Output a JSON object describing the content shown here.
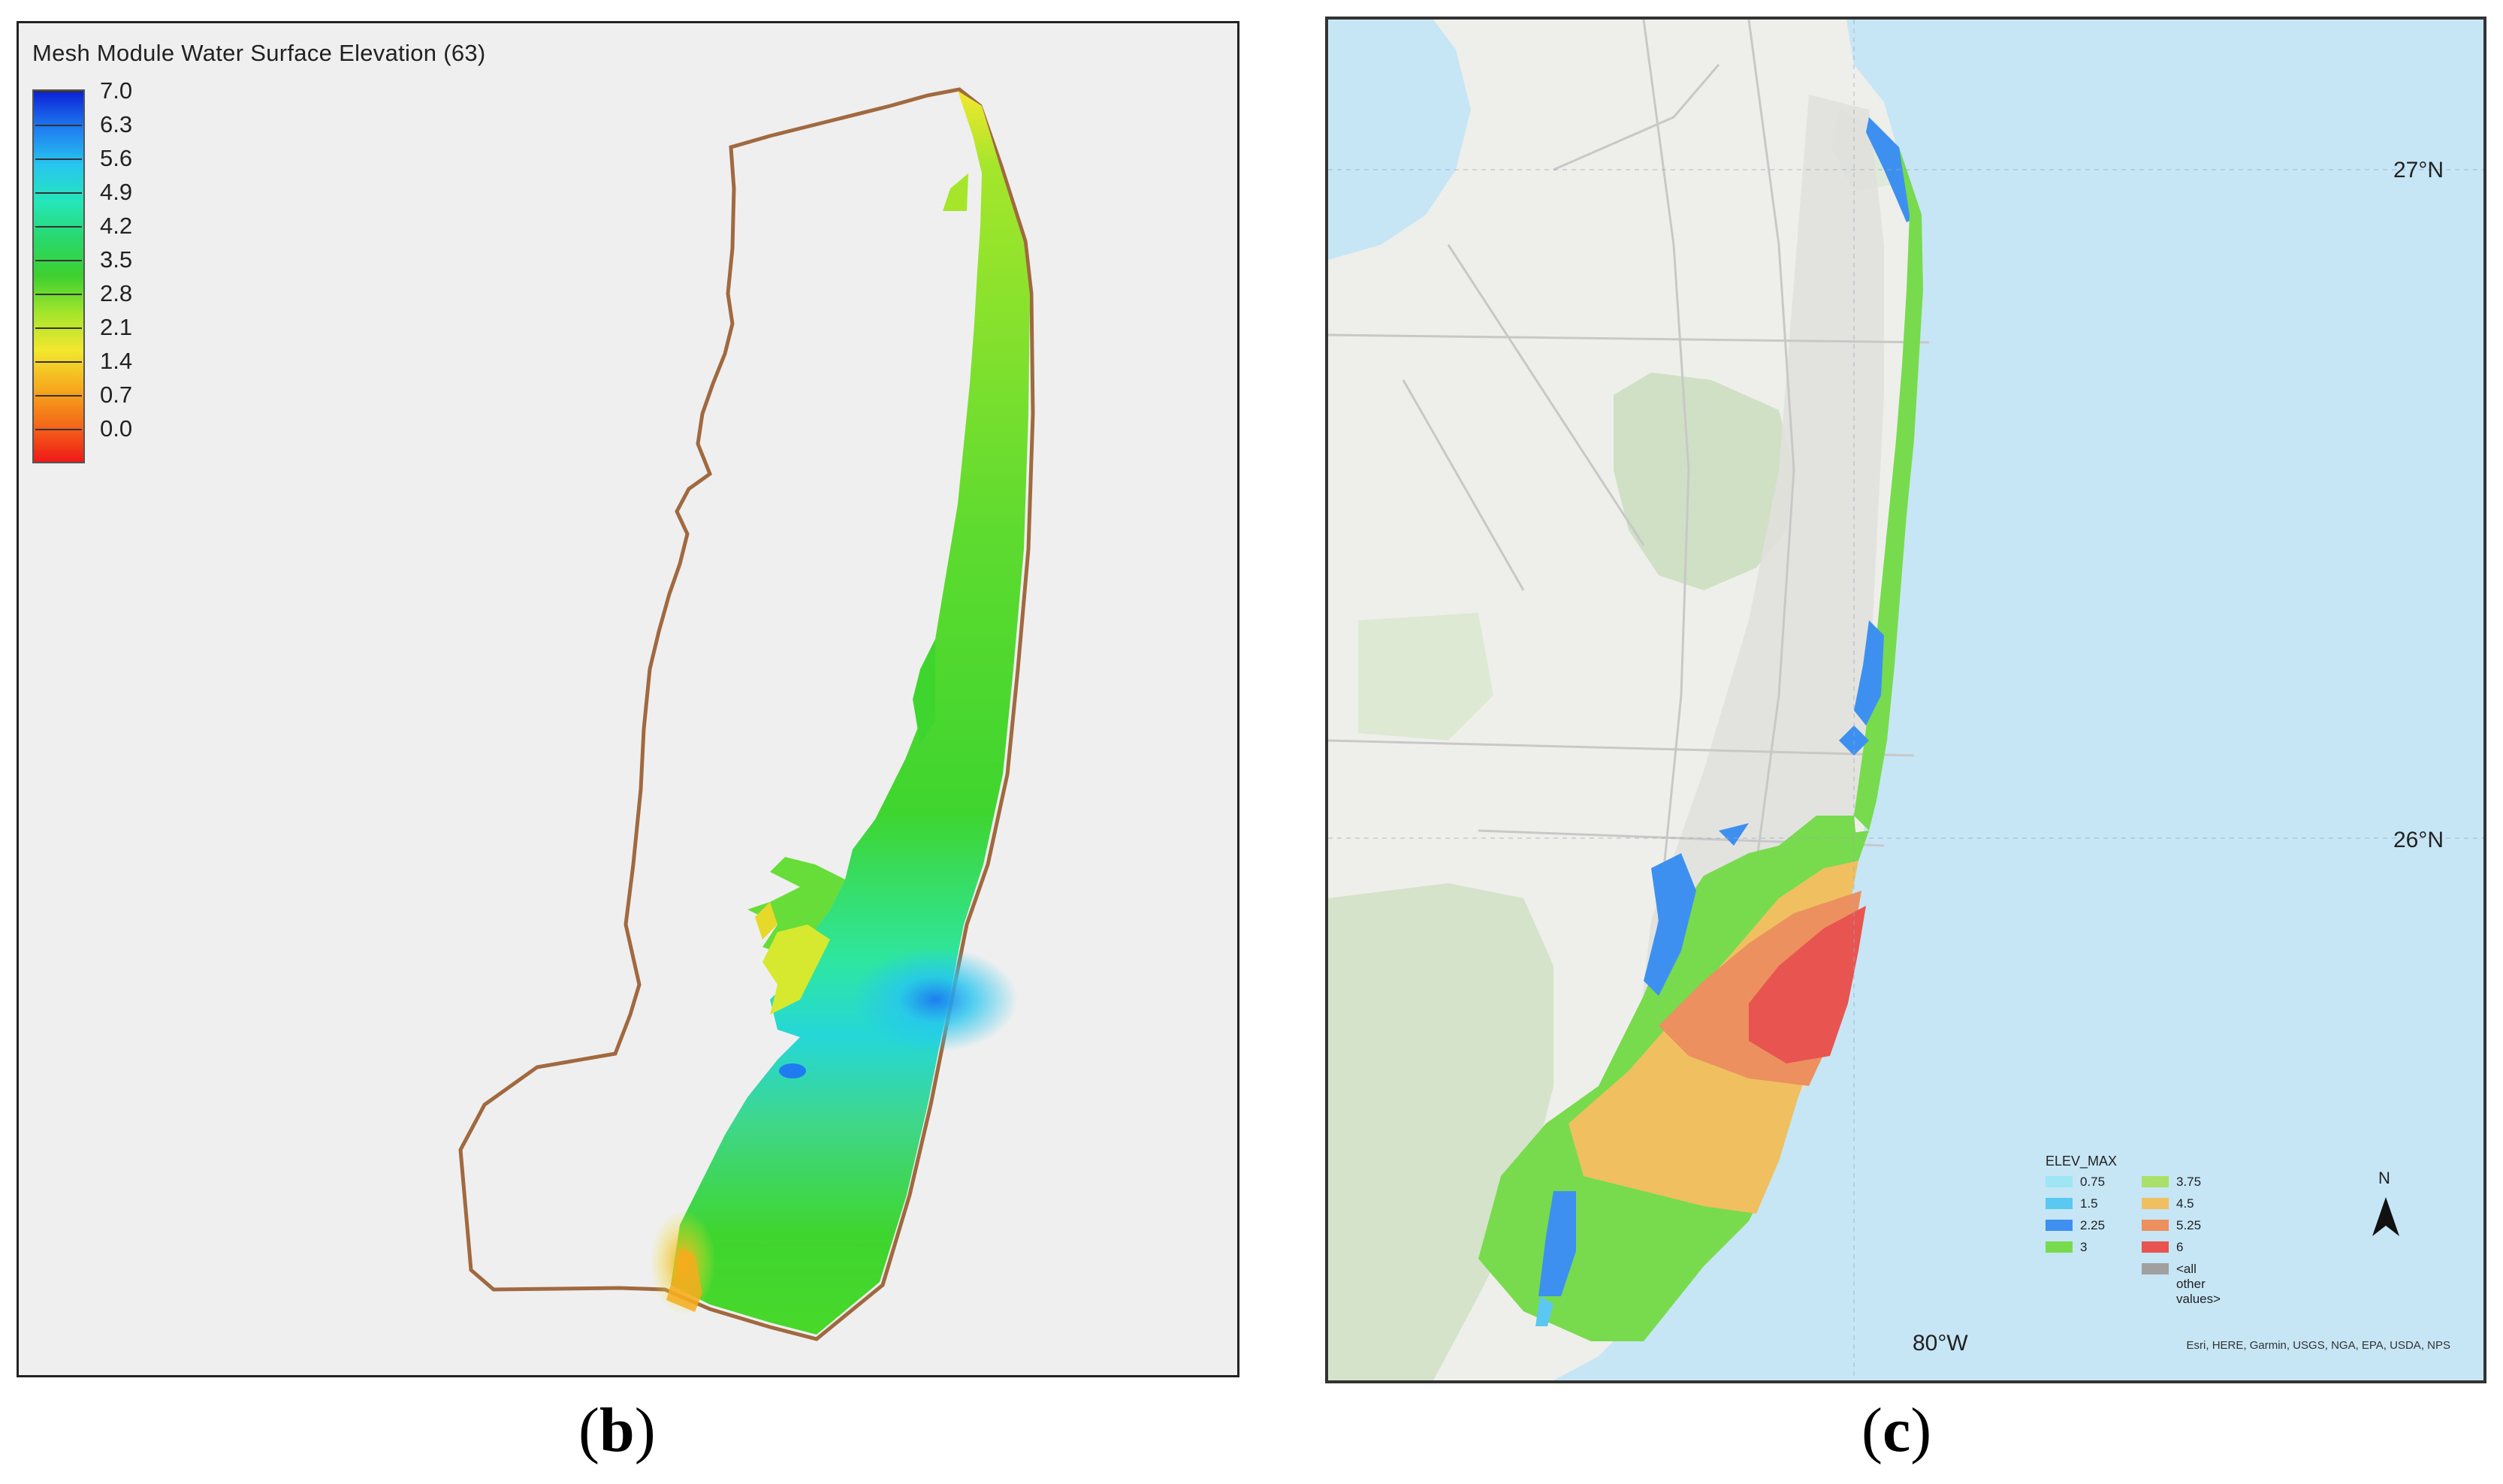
{
  "panel_b": {
    "caption_open": "(",
    "caption_letter": "b",
    "caption_close": ")",
    "legend_title": "Mesh Module Water Surface Elevation (63)",
    "legend_values": [
      "7.0",
      "6.3",
      "5.6",
      "4.9",
      "4.2",
      "3.5",
      "2.8",
      "2.1",
      "1.4",
      "0.7",
      "0.0"
    ],
    "colors": {
      "boundary": "#a0693f",
      "high": "#0a1fd6",
      "low": "#ef1818"
    }
  },
  "panel_c": {
    "caption_open": "(",
    "caption_letter": "c",
    "caption_close": ")",
    "lat_labels": [
      "27°N",
      "26°N"
    ],
    "lon_label": "80°W",
    "north_label": "N",
    "legend_title": "ELEV_MAX",
    "legend_items": [
      {
        "label": "0.75",
        "color": "#9fe6f5"
      },
      {
        "label": "1.5",
        "color": "#5ac8f0"
      },
      {
        "label": "2.25",
        "color": "#3d8ff0"
      },
      {
        "label": "3",
        "color": "#78db4e"
      },
      {
        "label": "3.75",
        "color": "#a8e06a"
      },
      {
        "label": "4.5",
        "color": "#f0c060"
      },
      {
        "label": "5.25",
        "color": "#ec9060"
      },
      {
        "label": "6",
        "color": "#e85550"
      },
      {
        "label": "<all other values>",
        "color": "#a0a0a0"
      }
    ],
    "attribution": "Esri, HERE, Garmin, USGS, NGA, EPA, USDA, NPS"
  }
}
